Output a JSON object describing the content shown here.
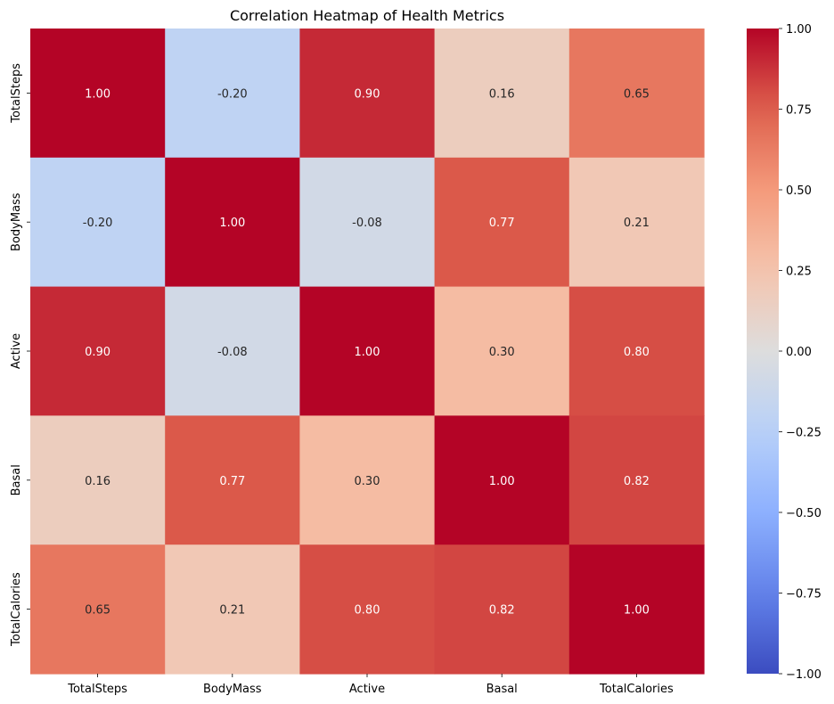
{
  "chart_data": {
    "type": "heatmap",
    "title": "Correlation Heatmap of Health Metrics",
    "xlabel": "",
    "ylabel": "",
    "x_categories": [
      "TotalSteps",
      "BodyMass",
      "Active",
      "Basal",
      "TotalCalories"
    ],
    "y_categories": [
      "TotalSteps",
      "BodyMass",
      "Active",
      "Basal",
      "TotalCalories"
    ],
    "values": [
      [
        1.0,
        -0.2,
        0.9,
        0.16,
        0.65
      ],
      [
        -0.2,
        1.0,
        -0.08,
        0.77,
        0.21
      ],
      [
        0.9,
        -0.08,
        1.0,
        0.3,
        0.8
      ],
      [
        0.16,
        0.77,
        0.3,
        1.0,
        0.82
      ],
      [
        0.65,
        0.21,
        0.8,
        0.82,
        1.0
      ]
    ],
    "annotations": [
      [
        "1.00",
        "-0.20",
        "0.90",
        "0.16",
        "0.65"
      ],
      [
        "-0.20",
        "1.00",
        "-0.08",
        "0.77",
        "0.21"
      ],
      [
        "0.90",
        "-0.08",
        "1.00",
        "0.30",
        "0.80"
      ],
      [
        "0.16",
        "0.77",
        "0.30",
        "1.00",
        "0.82"
      ],
      [
        "0.65",
        "0.21",
        "0.80",
        "0.82",
        "1.00"
      ]
    ],
    "colormap": "coolwarm",
    "vmin": -1.0,
    "vmax": 1.0,
    "colorbar_ticks": [
      -1.0,
      -0.75,
      -0.5,
      -0.25,
      0.0,
      0.25,
      0.5,
      0.75,
      1.0
    ],
    "colorbar_tick_labels": [
      "−1.00",
      "−0.75",
      "−0.50",
      "−0.25",
      "0.00",
      "0.25",
      "0.50",
      "0.75",
      "1.00"
    ],
    "colorbar_position": "right",
    "grid": false
  }
}
